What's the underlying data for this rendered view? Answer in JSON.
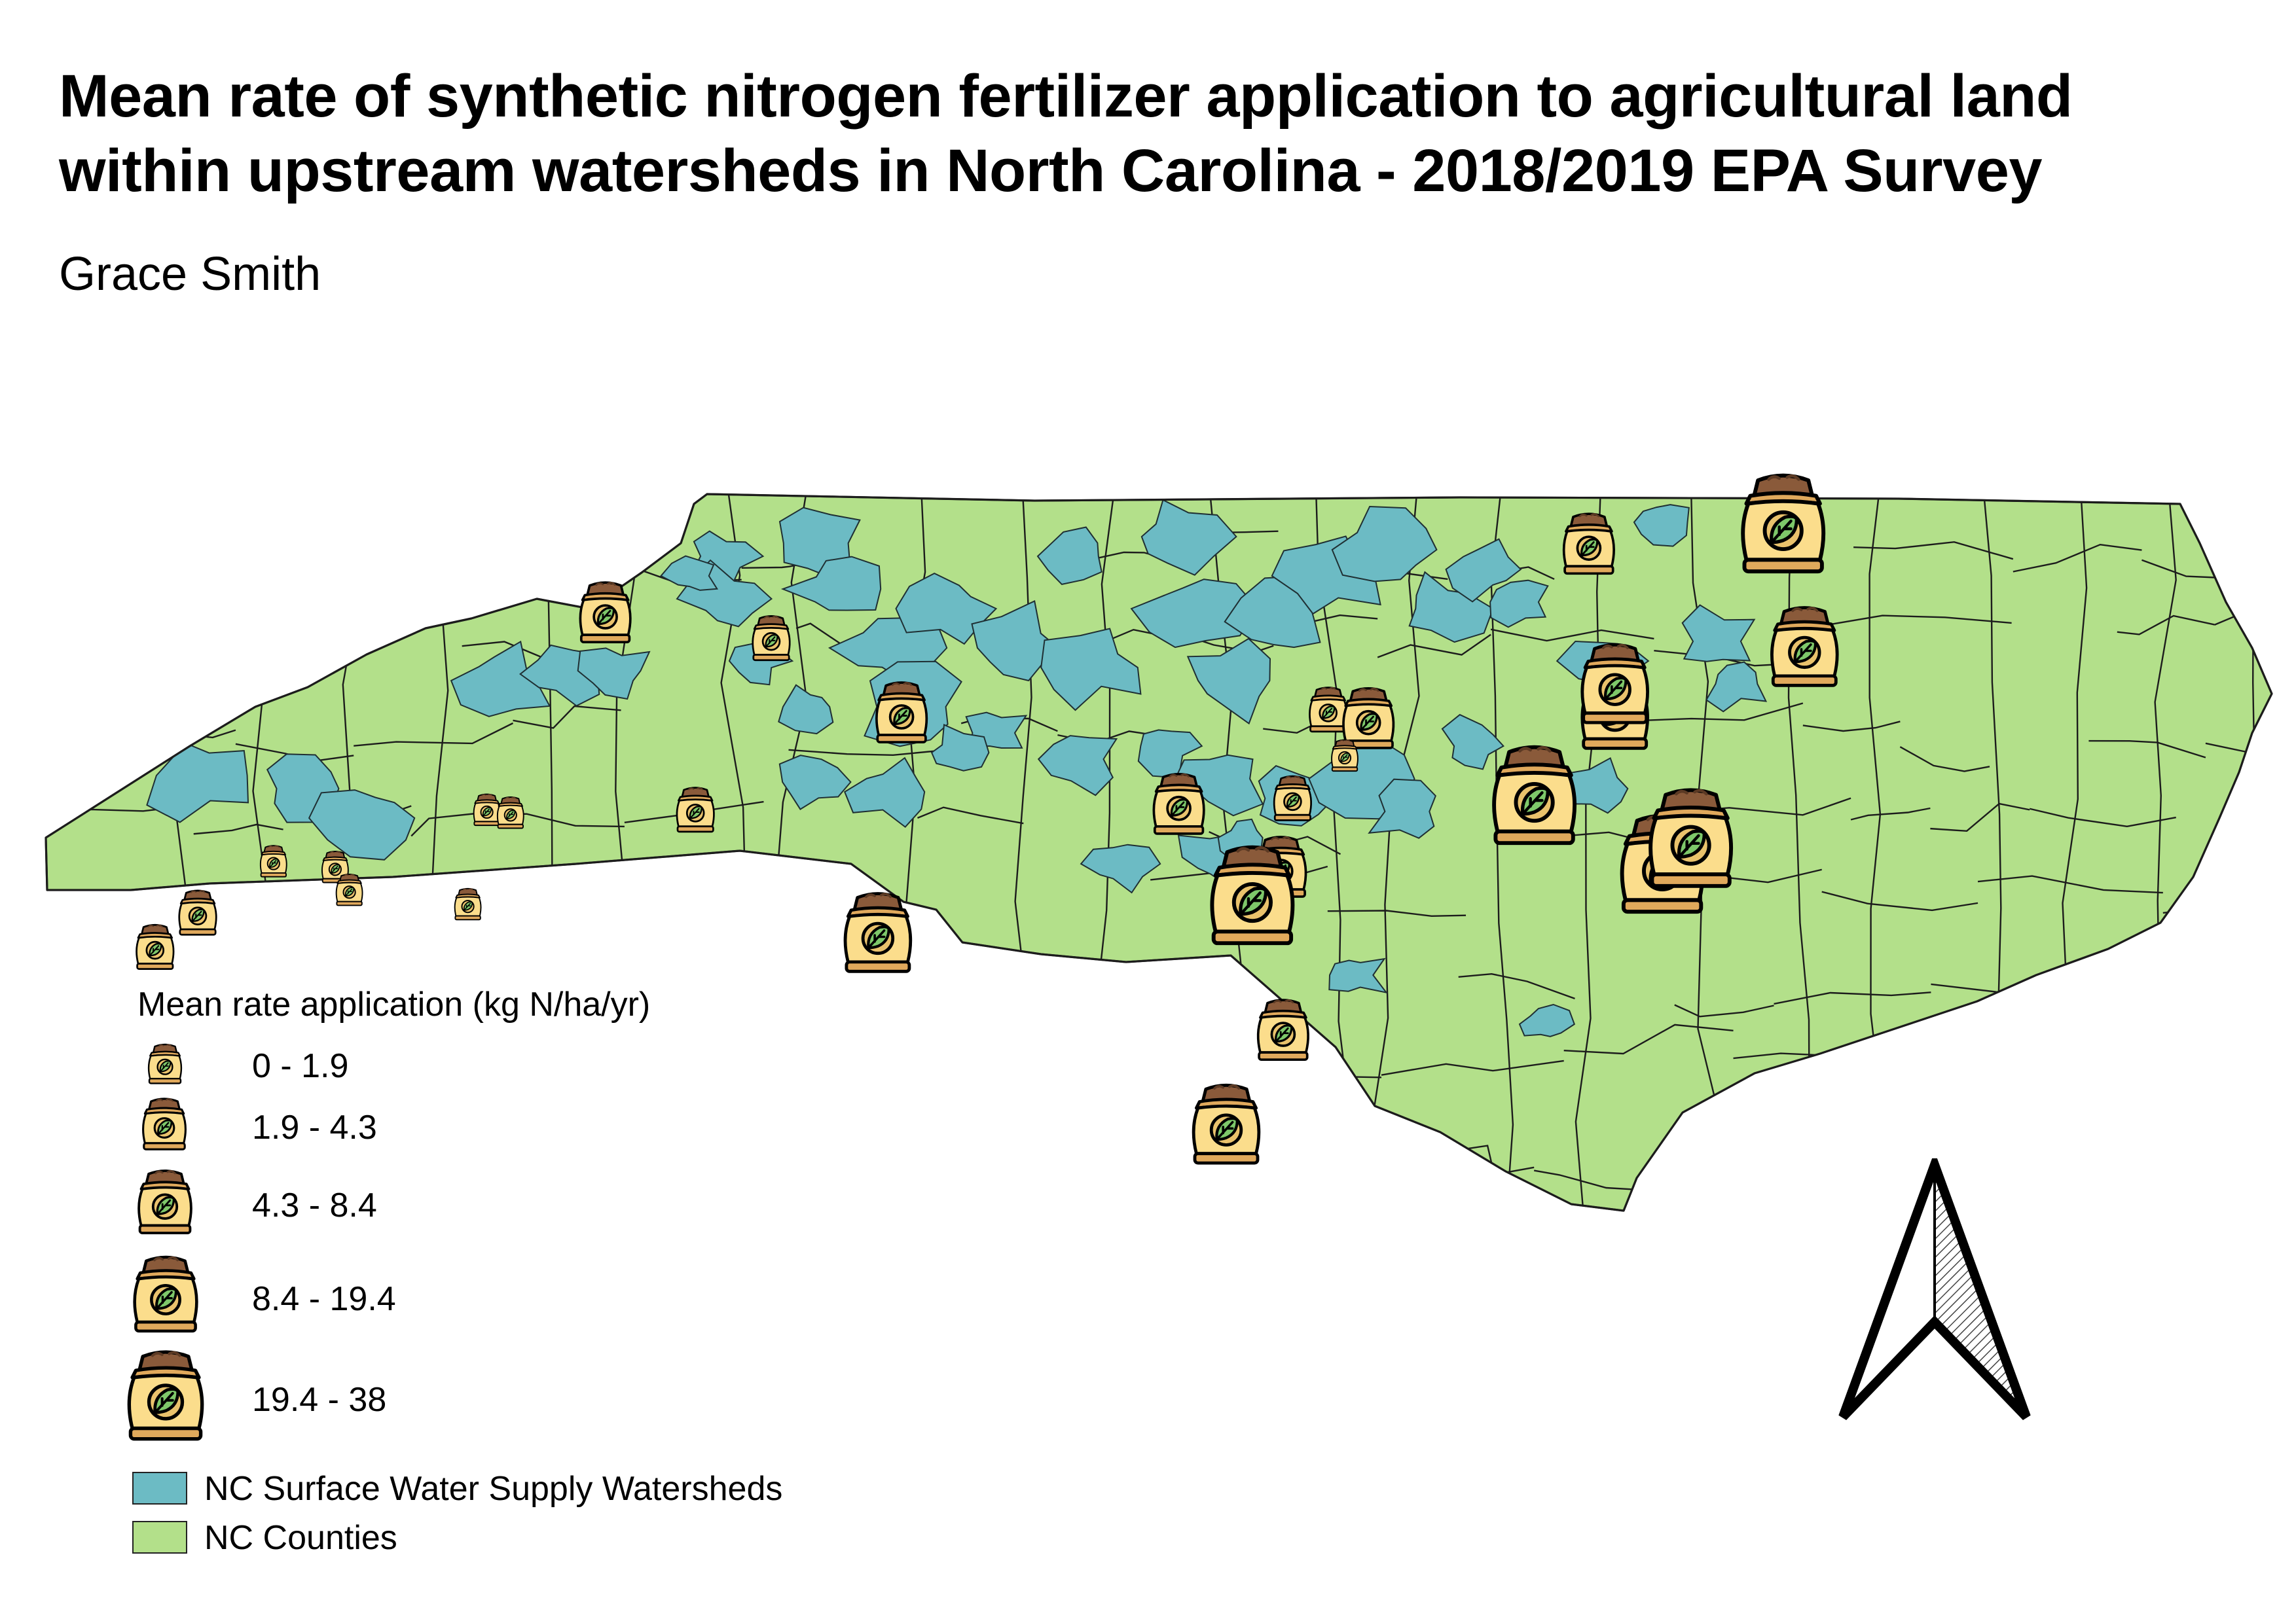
{
  "title_lines": [
    "Mean rate of synthetic nitrogen fertilizer application to agricultural land",
    "within upstream watersheds in North Carolina - 2018/2019 EPA Survey"
  ],
  "author": "Grace Smith",
  "legend": {
    "title": "Mean rate application (kg N/ha/yr)",
    "classes": [
      {
        "label": "0 - 1.9",
        "size_class": 1
      },
      {
        "label": "1.9 - 4.3",
        "size_class": 2
      },
      {
        "label": "4.3 - 8.4",
        "size_class": 3
      },
      {
        "label": "8.4 - 19.4",
        "size_class": 4
      },
      {
        "label": "19.4 - 38",
        "size_class": 5
      }
    ],
    "layers": [
      {
        "label": "NC Surface Water Supply Watersheds",
        "color": "#6cbbc4"
      },
      {
        "label": "NC Counties",
        "color": "#b3e08a"
      }
    ]
  },
  "colors": {
    "county_fill": "#b3e08a",
    "watershed_fill": "#6cbbc4",
    "bag_body": "#fbdd8c",
    "bag_soil": "#8a5a3a",
    "bag_base": "#e0a95c",
    "leaf": "#7ec86a"
  },
  "icons": [
    "fertilizer-bag-icon",
    "north-arrow-icon"
  ],
  "fertilizer_points": [
    {
      "lon": -83.92,
      "lat": 35.12,
      "size_class": 2
    },
    {
      "lon": -83.6,
      "lat": 35.3,
      "size_class": 1
    },
    {
      "lon": -83.34,
      "lat": 35.28,
      "size_class": 1
    },
    {
      "lon": -83.28,
      "lat": 35.2,
      "size_class": 1
    },
    {
      "lon": -84.1,
      "lat": 35.0,
      "size_class": 2
    },
    {
      "lon": -82.78,
      "lat": 35.15,
      "size_class": 1
    },
    {
      "lon": -82.7,
      "lat": 35.48,
      "size_class": 1
    },
    {
      "lon": -82.6,
      "lat": 35.47,
      "size_class": 1
    },
    {
      "lon": -82.2,
      "lat": 36.17,
      "size_class": 3
    },
    {
      "lon": -81.5,
      "lat": 36.08,
      "size_class": 2
    },
    {
      "lon": -81.82,
      "lat": 35.48,
      "size_class": 2
    },
    {
      "lon": -80.95,
      "lat": 35.82,
      "size_class": 3
    },
    {
      "lon": -81.05,
      "lat": 35.05,
      "size_class": 4
    },
    {
      "lon": -79.78,
      "lat": 35.5,
      "size_class": 3
    },
    {
      "lon": -79.3,
      "lat": 35.52,
      "size_class": 2
    },
    {
      "lon": -79.35,
      "lat": 35.28,
      "size_class": 3
    },
    {
      "lon": -79.47,
      "lat": 35.18,
      "size_class": 5
    },
    {
      "lon": -79.15,
      "lat": 35.83,
      "size_class": 2
    },
    {
      "lon": -78.98,
      "lat": 35.8,
      "size_class": 3
    },
    {
      "lon": -79.08,
      "lat": 35.67,
      "size_class": 1
    },
    {
      "lon": -78.05,
      "lat": 36.41,
      "size_class": 3
    },
    {
      "lon": -77.94,
      "lat": 35.83,
      "size_class": 4
    },
    {
      "lon": -77.94,
      "lat": 35.92,
      "size_class": 4
    },
    {
      "lon": -78.28,
      "lat": 35.53,
      "size_class": 5
    },
    {
      "lon": -77.74,
      "lat": 35.29,
      "size_class": 5
    },
    {
      "lon": -77.62,
      "lat": 35.38,
      "size_class": 5
    },
    {
      "lon": -77.23,
      "lat": 36.48,
      "size_class": 5
    },
    {
      "lon": -77.14,
      "lat": 36.05,
      "size_class": 4
    },
    {
      "lon": -79.34,
      "lat": 34.71,
      "size_class": 3
    },
    {
      "lon": -79.58,
      "lat": 34.38,
      "size_class": 4
    }
  ]
}
